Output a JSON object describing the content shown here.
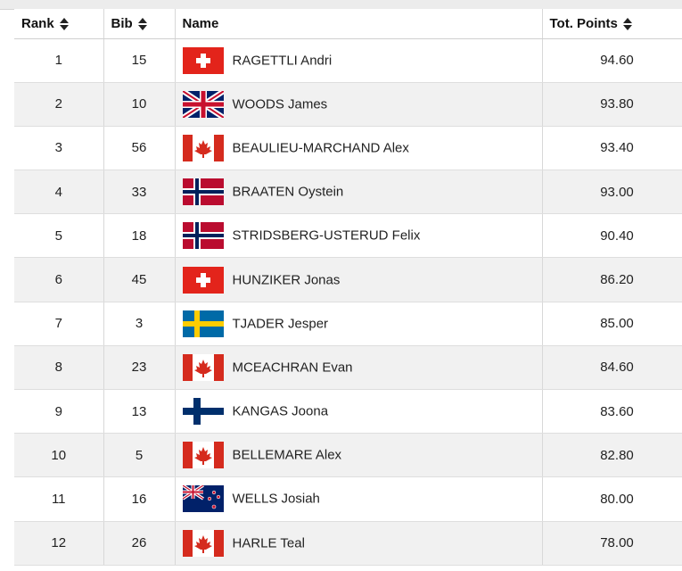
{
  "table": {
    "headers": {
      "rank": "Rank",
      "bib": "Bib",
      "name": "Name",
      "points": "Tot. Points"
    },
    "rows": [
      {
        "rank": "1",
        "bib": "15",
        "name": "RAGETTLI Andri",
        "country": "SUI",
        "points": "94.60"
      },
      {
        "rank": "2",
        "bib": "10",
        "name": "WOODS James",
        "country": "GBR",
        "points": "93.80"
      },
      {
        "rank": "3",
        "bib": "56",
        "name": "BEAULIEU-MARCHAND Alex",
        "country": "CAN",
        "points": "93.40"
      },
      {
        "rank": "4",
        "bib": "33",
        "name": "BRAATEN Oystein",
        "country": "NOR",
        "points": "93.00"
      },
      {
        "rank": "5",
        "bib": "18",
        "name": "STRIDSBERG-USTERUD Felix",
        "country": "NOR",
        "points": "90.40"
      },
      {
        "rank": "6",
        "bib": "45",
        "name": "HUNZIKER Jonas",
        "country": "SUI",
        "points": "86.20"
      },
      {
        "rank": "7",
        "bib": "3",
        "name": "TJADER Jesper",
        "country": "SWE",
        "points": "85.00"
      },
      {
        "rank": "8",
        "bib": "23",
        "name": "MCEACHRAN Evan",
        "country": "CAN",
        "points": "84.60"
      },
      {
        "rank": "9",
        "bib": "13",
        "name": "KANGAS Joona",
        "country": "FIN",
        "points": "83.60"
      },
      {
        "rank": "10",
        "bib": "5",
        "name": "BELLEMARE Alex",
        "country": "CAN",
        "points": "82.80"
      },
      {
        "rank": "11",
        "bib": "16",
        "name": "WELLS Josiah",
        "country": "NZL",
        "points": "80.00"
      },
      {
        "rank": "12",
        "bib": "26",
        "name": "HARLE Teal",
        "country": "CAN",
        "points": "78.00"
      }
    ]
  },
  "icons": {
    "sort": "sort-arrows-icon",
    "flag": "country-flag-icon"
  },
  "colors": {
    "header_text": "#111111",
    "row_alt": "#f1f1f1",
    "grid": "#d8d8d8"
  }
}
